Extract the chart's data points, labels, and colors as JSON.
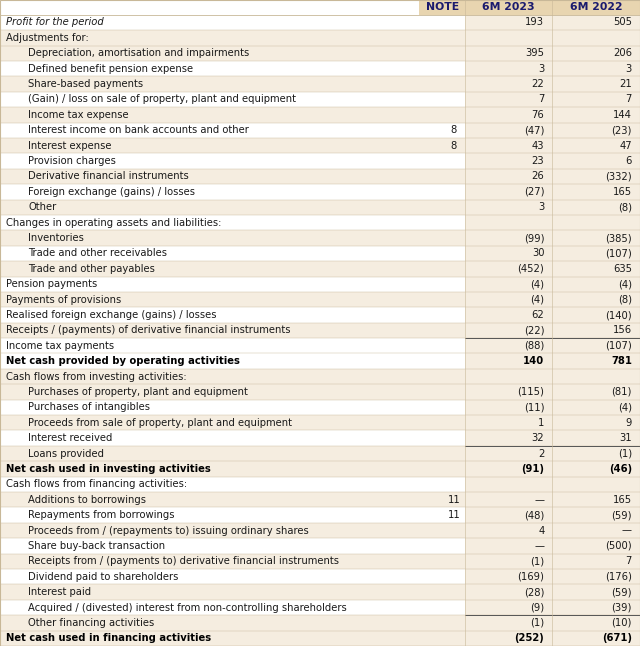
{
  "columns": [
    "NOTE",
    "6M 2023",
    "6M 2022"
  ],
  "rows": [
    {
      "label": "Profit for the period",
      "note": "",
      "val1": "193",
      "val2": "505",
      "style": "italic",
      "indent": 0,
      "bg": "white"
    },
    {
      "label": "Adjustments for:",
      "note": "",
      "val1": "",
      "val2": "",
      "style": "normal",
      "indent": 0,
      "bg": "light"
    },
    {
      "label": "Depreciation, amortisation and impairments",
      "note": "",
      "val1": "395",
      "val2": "206",
      "style": "normal",
      "indent": 1,
      "bg": "light"
    },
    {
      "label": "Defined benefit pension expense",
      "note": "",
      "val1": "3",
      "val2": "3",
      "style": "normal",
      "indent": 1,
      "bg": "white"
    },
    {
      "label": "Share-based payments",
      "note": "",
      "val1": "22",
      "val2": "21",
      "style": "normal",
      "indent": 1,
      "bg": "light"
    },
    {
      "label": "(Gain) / loss on sale of property, plant and equipment",
      "note": "",
      "val1": "7",
      "val2": "7",
      "style": "normal",
      "indent": 1,
      "bg": "white"
    },
    {
      "label": "Income tax expense",
      "note": "",
      "val1": "76",
      "val2": "144",
      "style": "normal",
      "indent": 1,
      "bg": "light"
    },
    {
      "label": "Interest income on bank accounts and other",
      "note": "8",
      "val1": "(47)",
      "val2": "(23)",
      "style": "normal",
      "indent": 1,
      "bg": "white"
    },
    {
      "label": "Interest expense",
      "note": "8",
      "val1": "43",
      "val2": "47",
      "style": "normal",
      "indent": 1,
      "bg": "light"
    },
    {
      "label": "Provision charges",
      "note": "",
      "val1": "23",
      "val2": "6",
      "style": "normal",
      "indent": 1,
      "bg": "white"
    },
    {
      "label": "Derivative financial instruments",
      "note": "",
      "val1": "26",
      "val2": "(332)",
      "style": "normal",
      "indent": 1,
      "bg": "light"
    },
    {
      "label": "Foreign exchange (gains) / losses",
      "note": "",
      "val1": "(27)",
      "val2": "165",
      "style": "normal",
      "indent": 1,
      "bg": "white"
    },
    {
      "label": "Other",
      "note": "",
      "val1": "3",
      "val2": "(8)",
      "style": "normal",
      "indent": 1,
      "bg": "light"
    },
    {
      "label": "Changes in operating assets and liabilities:",
      "note": "",
      "val1": "",
      "val2": "",
      "style": "normal",
      "indent": 0,
      "bg": "white"
    },
    {
      "label": "Inventories",
      "note": "",
      "val1": "(99)",
      "val2": "(385)",
      "style": "normal",
      "indent": 1,
      "bg": "light"
    },
    {
      "label": "Trade and other receivables",
      "note": "",
      "val1": "30",
      "val2": "(107)",
      "style": "normal",
      "indent": 1,
      "bg": "white"
    },
    {
      "label": "Trade and other payables",
      "note": "",
      "val1": "(452)",
      "val2": "635",
      "style": "normal",
      "indent": 1,
      "bg": "light"
    },
    {
      "label": "Pension payments",
      "note": "",
      "val1": "(4)",
      "val2": "(4)",
      "style": "normal",
      "indent": 0,
      "bg": "white"
    },
    {
      "label": "Payments of provisions",
      "note": "",
      "val1": "(4)",
      "val2": "(8)",
      "style": "normal",
      "indent": 0,
      "bg": "light"
    },
    {
      "label": "Realised foreign exchange (gains) / losses",
      "note": "",
      "val1": "62",
      "val2": "(140)",
      "style": "normal",
      "indent": 0,
      "bg": "white"
    },
    {
      "label": "Receipts / (payments) of derivative financial instruments",
      "note": "",
      "val1": "(22)",
      "val2": "156",
      "style": "normal",
      "indent": 0,
      "bg": "light"
    },
    {
      "label": "Income tax payments",
      "note": "",
      "val1": "(88)",
      "val2": "(107)",
      "style": "normal",
      "indent": 0,
      "bg": "white",
      "top_border": true
    },
    {
      "label": "Net cash provided by operating activities",
      "note": "",
      "val1": "140",
      "val2": "781",
      "style": "bold",
      "indent": 0,
      "bg": "white"
    },
    {
      "label": "Cash flows from investing activities:",
      "note": "",
      "val1": "",
      "val2": "",
      "style": "normal",
      "indent": 0,
      "bg": "light"
    },
    {
      "label": "Purchases of property, plant and equipment",
      "note": "",
      "val1": "(115)",
      "val2": "(81)",
      "style": "normal",
      "indent": 1,
      "bg": "light"
    },
    {
      "label": "Purchases of intangibles",
      "note": "",
      "val1": "(11)",
      "val2": "(4)",
      "style": "normal",
      "indent": 1,
      "bg": "white"
    },
    {
      "label": "Proceeds from sale of property, plant and equipment",
      "note": "",
      "val1": "1",
      "val2": "9",
      "style": "normal",
      "indent": 1,
      "bg": "light"
    },
    {
      "label": "Interest received",
      "note": "",
      "val1": "32",
      "val2": "31",
      "style": "normal",
      "indent": 1,
      "bg": "white"
    },
    {
      "label": "Loans provided",
      "note": "",
      "val1": "2",
      "val2": "(1)",
      "style": "normal",
      "indent": 1,
      "bg": "light",
      "top_border": true
    },
    {
      "label": "Net cash used in investing activities",
      "note": "",
      "val1": "(91)",
      "val2": "(46)",
      "style": "bold",
      "indent": 0,
      "bg": "light"
    },
    {
      "label": "Cash flows from financing activities:",
      "note": "",
      "val1": "",
      "val2": "",
      "style": "normal",
      "indent": 0,
      "bg": "white"
    },
    {
      "label": "Additions to borrowings",
      "note": "11",
      "val1": "—",
      "val2": "165",
      "style": "normal",
      "indent": 1,
      "bg": "light"
    },
    {
      "label": "Repayments from borrowings",
      "note": "11",
      "val1": "(48)",
      "val2": "(59)",
      "style": "normal",
      "indent": 1,
      "bg": "white"
    },
    {
      "label": "Proceeds from / (repayments to) issuing ordinary shares",
      "note": "",
      "val1": "4",
      "val2": "—",
      "style": "normal",
      "indent": 1,
      "bg": "light"
    },
    {
      "label": "Share buy-back transaction",
      "note": "",
      "val1": "—",
      "val2": "(500)",
      "style": "normal",
      "indent": 1,
      "bg": "white"
    },
    {
      "label": "Receipts from / (payments to) derivative financial instruments",
      "note": "",
      "val1": "(1)",
      "val2": "7",
      "style": "normal",
      "indent": 1,
      "bg": "light"
    },
    {
      "label": "Dividend paid to shareholders",
      "note": "",
      "val1": "(169)",
      "val2": "(176)",
      "style": "normal",
      "indent": 1,
      "bg": "white"
    },
    {
      "label": "Interest paid",
      "note": "",
      "val1": "(28)",
      "val2": "(59)",
      "style": "normal",
      "indent": 1,
      "bg": "light"
    },
    {
      "label": "Acquired / (divested) interest from non-controlling shareholders",
      "note": "",
      "val1": "(9)",
      "val2": "(39)",
      "style": "normal",
      "indent": 1,
      "bg": "white"
    },
    {
      "label": "Other financing activities",
      "note": "",
      "val1": "(1)",
      "val2": "(10)",
      "style": "normal",
      "indent": 1,
      "bg": "light",
      "top_border": true
    },
    {
      "label": "Net cash used in financing activities",
      "note": "",
      "val1": "(252)",
      "val2": "(671)",
      "style": "bold",
      "indent": 0,
      "bg": "light"
    }
  ],
  "col_header_bg": "#e8d5b0",
  "col_header_text": "#1a1a6e",
  "light_row_bg": "#f5ede0",
  "white_row_bg": "#ffffff",
  "val_col_bg": "#f5ede0",
  "normal_text_color": "#1a1a1a",
  "bold_text_color": "#000000",
  "border_color": "#c8b898",
  "font_size": 7.2,
  "header_font_size": 7.8
}
